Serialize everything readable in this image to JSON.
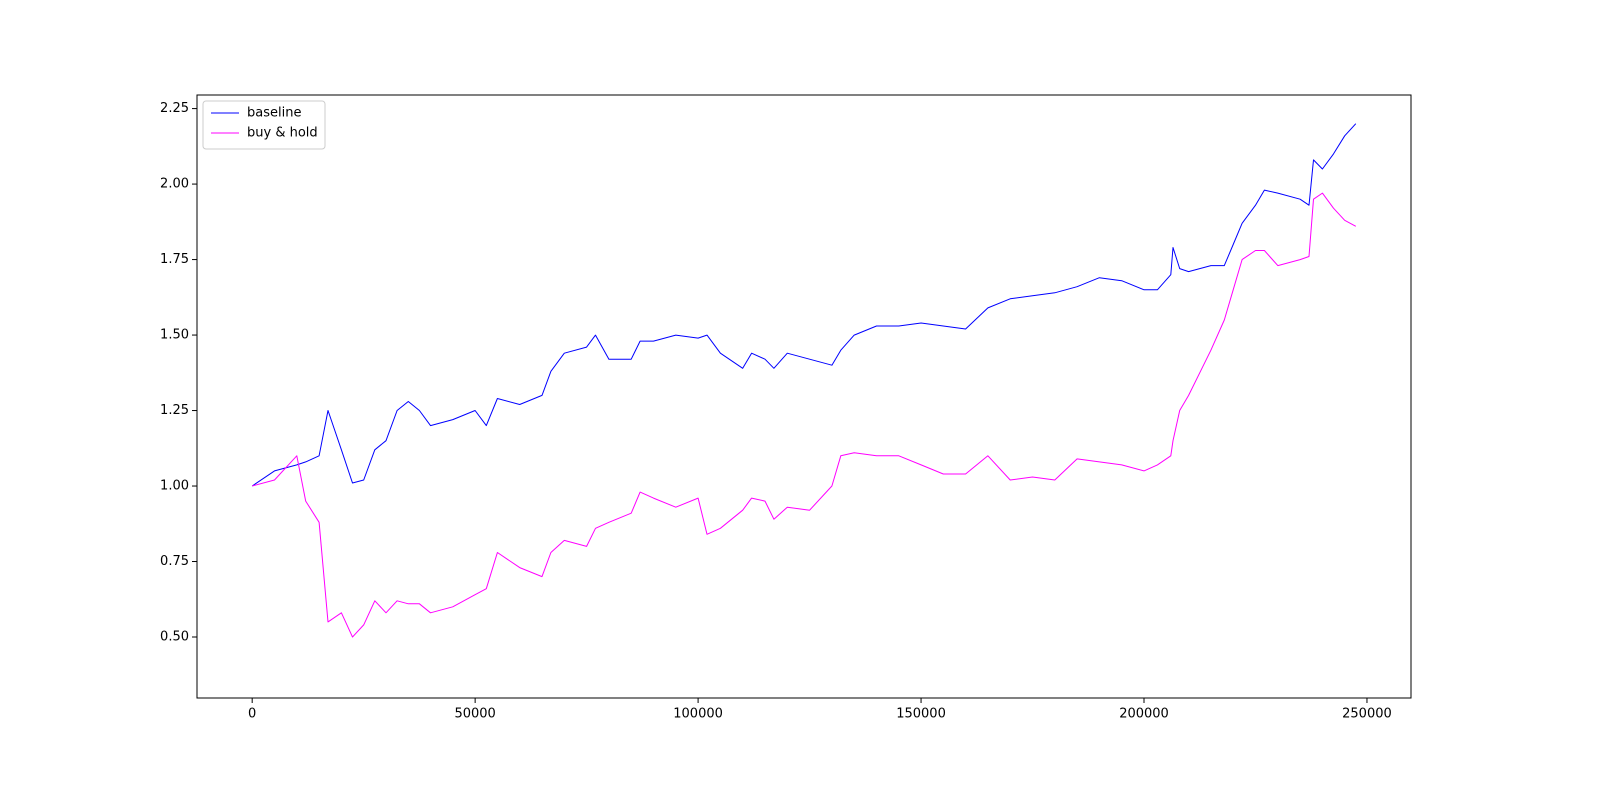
{
  "chart_data": {
    "type": "line",
    "x": [
      0,
      5000,
      10000,
      12000,
      15000,
      17000,
      20000,
      22500,
      25000,
      27500,
      30000,
      32500,
      35000,
      37500,
      40000,
      45000,
      50000,
      52500,
      55000,
      60000,
      65000,
      67000,
      70000,
      75000,
      77000,
      80000,
      85000,
      87000,
      90000,
      95000,
      100000,
      102000,
      105000,
      110000,
      112000,
      115000,
      117000,
      120000,
      125000,
      130000,
      132000,
      135000,
      140000,
      145000,
      150000,
      155000,
      160000,
      165000,
      170000,
      175000,
      180000,
      185000,
      190000,
      195000,
      200000,
      203000,
      206000,
      206500,
      208000,
      210000,
      215000,
      218000,
      220000,
      222000,
      225000,
      227000,
      230000,
      235000,
      237000,
      238000,
      240000,
      242500,
      245000,
      247500
    ],
    "series": [
      {
        "name": "baseline",
        "color": "#0000ff",
        "values": [
          1.0,
          1.05,
          1.07,
          1.08,
          1.1,
          1.25,
          1.12,
          1.01,
          1.02,
          1.12,
          1.15,
          1.25,
          1.28,
          1.25,
          1.2,
          1.22,
          1.25,
          1.2,
          1.29,
          1.27,
          1.3,
          1.38,
          1.44,
          1.46,
          1.5,
          1.42,
          1.42,
          1.48,
          1.48,
          1.5,
          1.49,
          1.5,
          1.44,
          1.39,
          1.44,
          1.42,
          1.39,
          1.44,
          1.42,
          1.4,
          1.45,
          1.5,
          1.53,
          1.53,
          1.54,
          1.53,
          1.52,
          1.59,
          1.62,
          1.63,
          1.64,
          1.66,
          1.69,
          1.68,
          1.65,
          1.65,
          1.7,
          1.79,
          1.72,
          1.71,
          1.73,
          1.73,
          1.8,
          1.87,
          1.93,
          1.98,
          1.97,
          1.95,
          1.93,
          2.08,
          2.05,
          2.1,
          2.16,
          2.2
        ]
      },
      {
        "name": "buy & hold",
        "color": "#ff00ff",
        "values": [
          1.0,
          1.02,
          1.1,
          0.95,
          0.88,
          0.55,
          0.58,
          0.5,
          0.54,
          0.62,
          0.58,
          0.62,
          0.61,
          0.61,
          0.58,
          0.6,
          0.64,
          0.66,
          0.78,
          0.73,
          0.7,
          0.78,
          0.82,
          0.8,
          0.86,
          0.88,
          0.91,
          0.98,
          0.96,
          0.93,
          0.96,
          0.84,
          0.86,
          0.92,
          0.96,
          0.95,
          0.89,
          0.93,
          0.92,
          1.0,
          1.1,
          1.11,
          1.1,
          1.1,
          1.07,
          1.04,
          1.04,
          1.1,
          1.02,
          1.03,
          1.02,
          1.09,
          1.08,
          1.07,
          1.05,
          1.07,
          1.1,
          1.15,
          1.25,
          1.3,
          1.45,
          1.55,
          1.65,
          1.75,
          1.78,
          1.78,
          1.73,
          1.75,
          1.76,
          1.95,
          1.97,
          1.92,
          1.88,
          1.86
        ]
      }
    ],
    "xlim": [
      -12375,
      259875
    ],
    "ylim": [
      0.298,
      2.295
    ],
    "xticks": [
      0,
      50000,
      100000,
      150000,
      200000,
      250000
    ],
    "yticks": [
      {
        "value": 0.5,
        "label": "0.50"
      },
      {
        "value": 0.75,
        "label": "0.75"
      },
      {
        "value": 1.0,
        "label": "1.00"
      },
      {
        "value": 1.25,
        "label": "1.25"
      },
      {
        "value": 1.5,
        "label": "1.50"
      },
      {
        "value": 1.75,
        "label": "1.75"
      },
      {
        "value": 2.0,
        "label": "2.00"
      },
      {
        "value": 2.25,
        "label": "2.25"
      }
    ],
    "legend": "upper left",
    "grid": false
  }
}
